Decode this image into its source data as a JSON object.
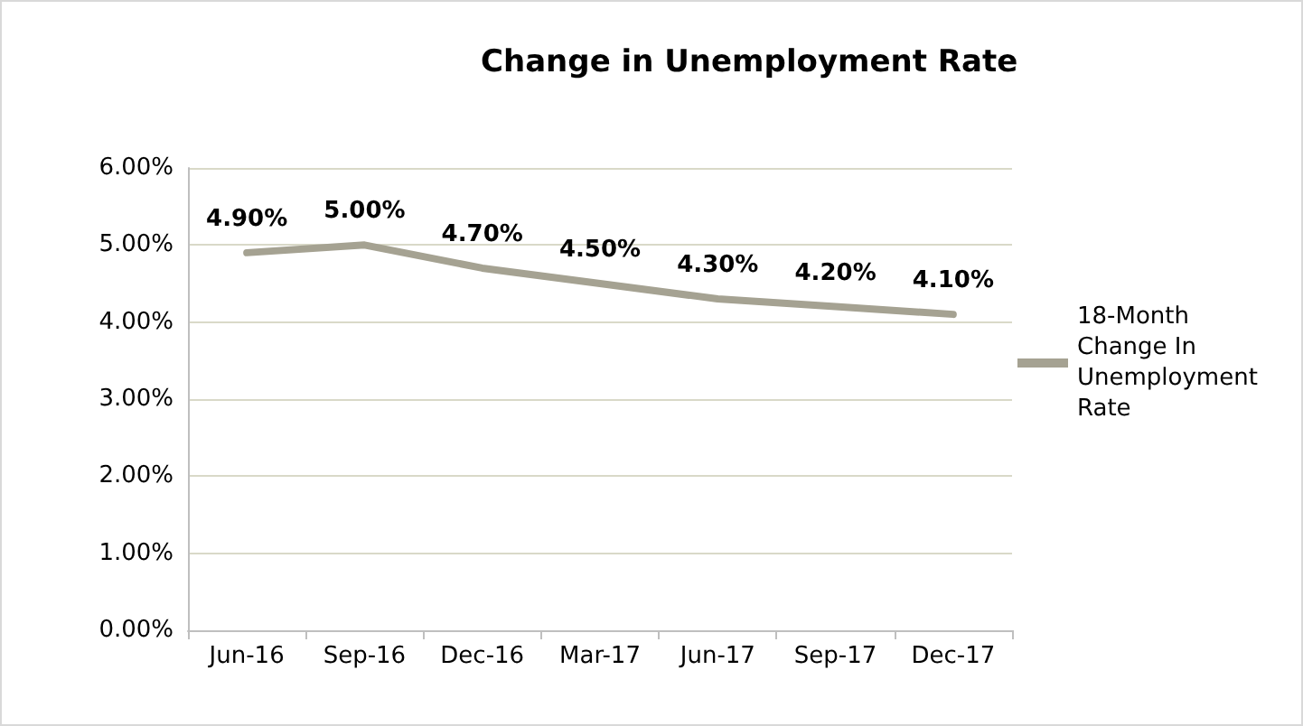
{
  "chart_data": {
    "type": "line",
    "title": "Change in Unemployment Rate",
    "categories": [
      "Jun-16",
      "Sep-16",
      "Dec-16",
      "Mar-17",
      "Jun-17",
      "Sep-17",
      "Dec-17"
    ],
    "series": [
      {
        "name": "18-Month Change In Unemployment Rate",
        "color": "#a5a292",
        "values": [
          4.9,
          5.0,
          4.7,
          4.5,
          4.3,
          4.2,
          4.1
        ],
        "value_labels": [
          "4.90%",
          "5.00%",
          "4.70%",
          "4.50%",
          "4.30%",
          "4.20%",
          "4.10%"
        ]
      }
    ],
    "ylim": [
      0,
      6
    ],
    "yticks": [
      {
        "value": 0,
        "label": "0.00%"
      },
      {
        "value": 1,
        "label": "1.00%"
      },
      {
        "value": 2,
        "label": "2.00%"
      },
      {
        "value": 3,
        "label": "3.00%"
      },
      {
        "value": 4,
        "label": "4.00%"
      },
      {
        "value": 5,
        "label": "5.00%"
      },
      {
        "value": 6,
        "label": "6.00%"
      }
    ],
    "grid": "y",
    "legend": "right",
    "marker": "none",
    "line_style": "solid"
  }
}
